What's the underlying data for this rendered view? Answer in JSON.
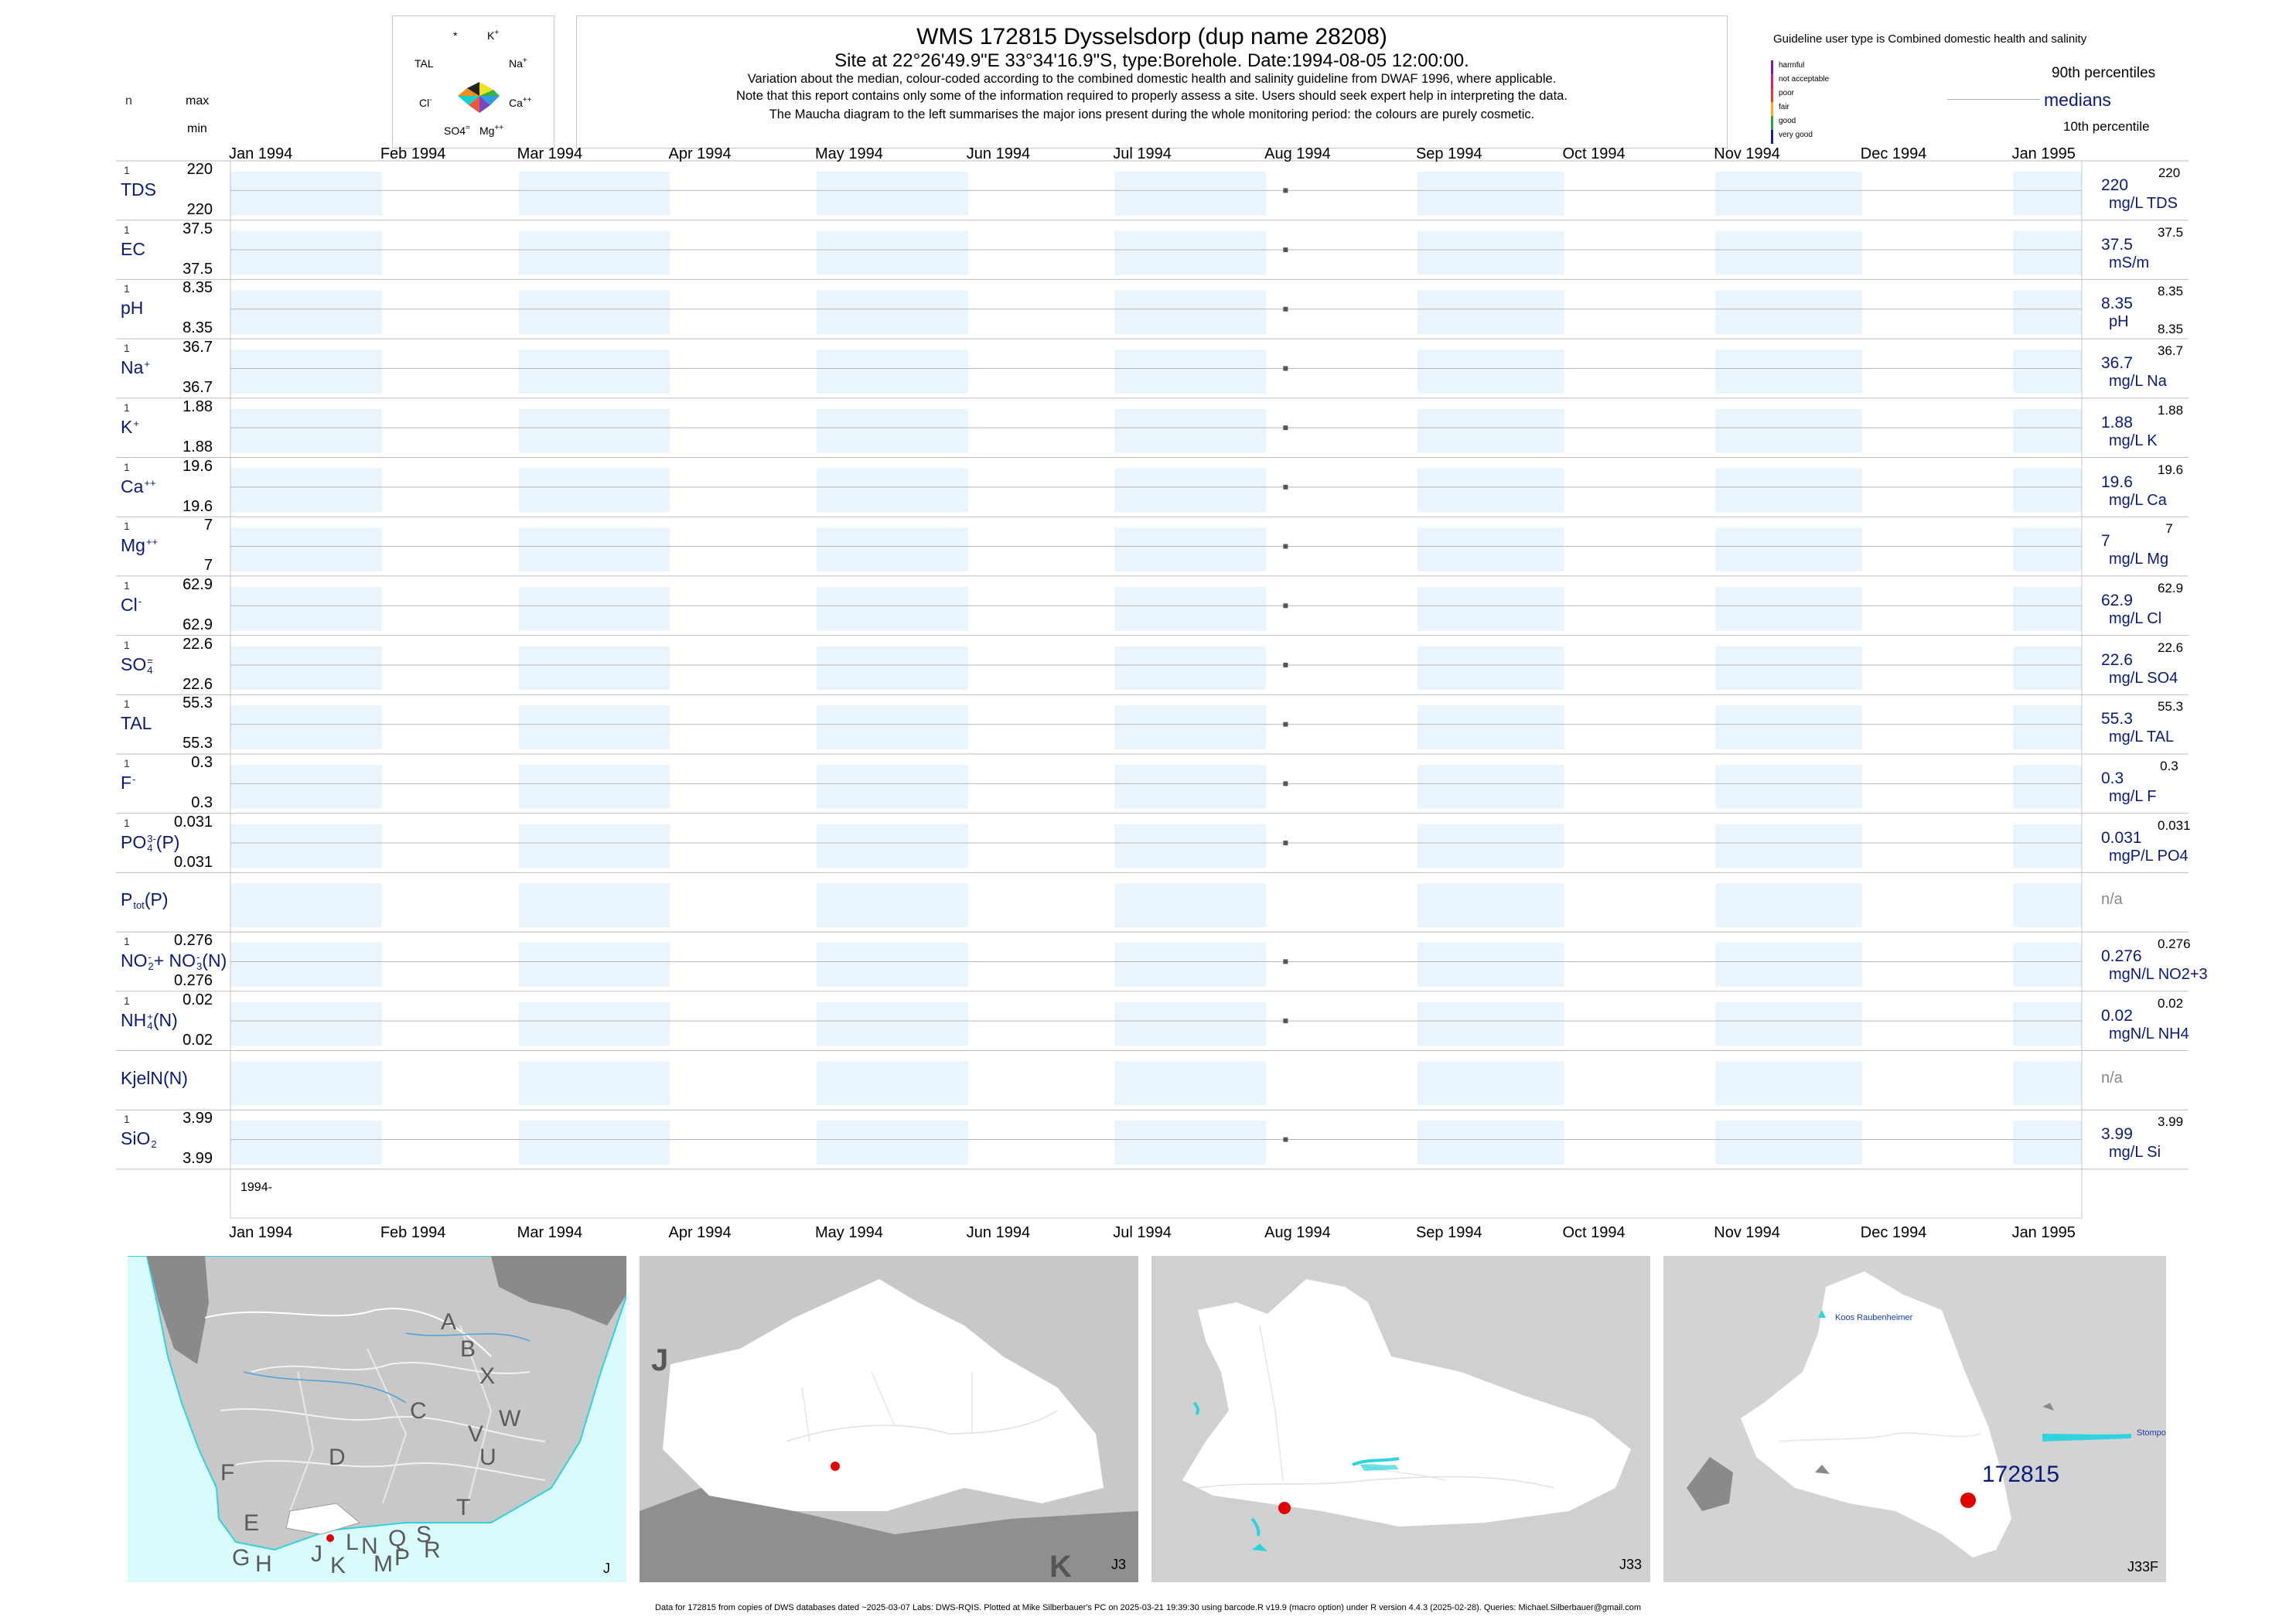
{
  "header": {
    "title": "WMS 172815  Dysselsdorp (dup name 28208)",
    "subtitle": "Site at 22°26'49.9\"E 33°34'16.9\"S, type:Borehole. Date:1994-08-05 12:00:00.",
    "note1": "Variation about the median,  colour-coded according to the combined domestic health and salinity guideline from DWAF 1996, where applicable.",
    "note2": "Note that this report contains only some of the information required to properly assess a site. Users should seek expert help in interpreting the data.",
    "note3": "The Maucha diagram to the left summarises the major ions present during the whole monitoring period: the colours are purely cosmetic."
  },
  "col_headers": {
    "n": "n",
    "max": "max",
    "min": "min"
  },
  "maucha": {
    "labels": {
      "star": "*",
      "k": "K+",
      "tal": "TAL",
      "na": "Na+",
      "cl": "Cl-",
      "ca": "Ca++",
      "so4": "SO4=",
      "mg": "Mg++"
    },
    "colors": [
      "#f2e21b",
      "#3ab24a",
      "#2c9de0",
      "#7a45c2",
      "#f2563a",
      "#14d2c8",
      "#f58a1f",
      "#222222"
    ]
  },
  "legend": {
    "title": "Guideline user type is Combined domestic health and salinity",
    "classes": [
      {
        "label": "harmful",
        "color": "#7b1fa2"
      },
      {
        "label": "not acceptable",
        "color": "#e0187a"
      },
      {
        "label": "poor",
        "color": "#e53935"
      },
      {
        "label": "fair",
        "color": "#f9a825"
      },
      {
        "label": "good",
        "color": "#2e9d3a"
      },
      {
        "label": "very good",
        "color": "#1a237e"
      }
    ],
    "p90": "90th percentiles",
    "medians": "medians",
    "p10": "10th percentile"
  },
  "chart_data": {
    "type": "scatter",
    "title": "WMS 172815  Dysselsdorp (dup name 28208)",
    "x_axis": {
      "start": "1994-01-01",
      "end": "1995-01-15",
      "ticks": [
        "Jan 1994",
        "Feb 1994",
        "Mar 1994",
        "Apr 1994",
        "May 1994",
        "Jun 1994",
        "Jul 1994",
        "Aug 1994",
        "Sep 1994",
        "Oct 1994",
        "Nov 1994",
        "Dec 1994",
        "Jan 1995"
      ]
    },
    "sample_date": "1994-08-05",
    "year_label": "1994-",
    "series": [
      {
        "name": "TDS",
        "label_main": "TDS",
        "sup": "",
        "sub": "",
        "n": "1",
        "max": "220",
        "min": "220",
        "median": "220",
        "p90": "220",
        "p10": "",
        "unit": "mg/L TDS",
        "value": 220
      },
      {
        "name": "EC",
        "label_main": "EC",
        "sup": "",
        "sub": "",
        "n": "1",
        "max": "37.5",
        "min": "37.5",
        "median": "37.5",
        "p90": "37.5",
        "p10": "",
        "unit": "mS/m",
        "value": 37.5
      },
      {
        "name": "pH",
        "label_main": "pH",
        "sup": "",
        "sub": "",
        "n": "1",
        "max": "8.35",
        "min": "8.35",
        "median": "8.35",
        "p90": "8.35",
        "p10": "8.35",
        "unit": "pH",
        "value": 8.35
      },
      {
        "name": "Na",
        "label_main": "Na",
        "sup": "+",
        "sub": "",
        "n": "1",
        "max": "36.7",
        "min": "36.7",
        "median": "36.7",
        "p90": "36.7",
        "p10": "",
        "unit": "mg/L Na",
        "value": 36.7
      },
      {
        "name": "K",
        "label_main": "K",
        "sup": "+",
        "sub": "",
        "n": "1",
        "max": "1.88",
        "min": "1.88",
        "median": "1.88",
        "p90": "1.88",
        "p10": "",
        "unit": "mg/L K",
        "value": 1.88
      },
      {
        "name": "Ca",
        "label_main": "Ca",
        "sup": "++",
        "sub": "",
        "n": "1",
        "max": "19.6",
        "min": "19.6",
        "median": "19.6",
        "p90": "19.6",
        "p10": "",
        "unit": "mg/L Ca",
        "value": 19.6
      },
      {
        "name": "Mg",
        "label_main": "Mg",
        "sup": "++",
        "sub": "",
        "n": "1",
        "max": "7",
        "min": "7",
        "median": "7",
        "p90": "7",
        "p10": "",
        "unit": "mg/L Mg",
        "value": 7
      },
      {
        "name": "Cl",
        "label_main": "Cl",
        "sup": "-",
        "sub": "",
        "n": "1",
        "max": "62.9",
        "min": "62.9",
        "median": "62.9",
        "p90": "62.9",
        "p10": "",
        "unit": "mg/L Cl",
        "value": 62.9
      },
      {
        "name": "SO4",
        "label_main": "SO",
        "sup": "=",
        "sub": "4",
        "n": "1",
        "max": "22.6",
        "min": "22.6",
        "median": "22.6",
        "p90": "22.6",
        "p10": "",
        "unit": "mg/L SO4",
        "value": 22.6
      },
      {
        "name": "TAL",
        "label_main": "TAL",
        "sup": "",
        "sub": "",
        "n": "1",
        "max": "55.3",
        "min": "55.3",
        "median": "55.3",
        "p90": "55.3",
        "p10": "",
        "unit": "mg/L TAL",
        "value": 55.3
      },
      {
        "name": "F",
        "label_main": "F",
        "sup": "-",
        "sub": "",
        "n": "1",
        "max": "0.3",
        "min": "0.3",
        "median": "0.3",
        "p90": "0.3",
        "p10": "",
        "unit": "mg/L F",
        "value": 0.3
      },
      {
        "name": "PO4",
        "label_main": "PO",
        "sup": "3-",
        "sub": "4",
        "tail": "(P)",
        "n": "1",
        "max": "0.031",
        "min": "0.031",
        "median": "0.031",
        "p90": "0.031",
        "p10": "",
        "unit": "mgP/L PO4",
        "value": 0.031
      },
      {
        "name": "Ptot",
        "label_main": "P",
        "sup": "",
        "sub": "tot",
        "tail": "(P)",
        "n": "",
        "max": "",
        "min": "",
        "median": "n/a",
        "p90": "",
        "p10": "",
        "unit": "",
        "value": null
      },
      {
        "name": "NO2+NO3",
        "label_main": "NO",
        "sup": "-",
        "sub": "2",
        "tail": "+ NO",
        "sup2": "-",
        "sub2": "3",
        "tail2": "(N)",
        "n": "1",
        "max": "0.276",
        "min": "0.276",
        "median": "0.276",
        "p90": "0.276",
        "p10": "",
        "unit": "mgN/L NO2+3",
        "value": 0.276
      },
      {
        "name": "NH4",
        "label_main": "NH",
        "sup": "+",
        "sub": "4",
        "tail": "(N)",
        "n": "1",
        "max": "0.02",
        "min": "0.02",
        "median": "0.02",
        "p90": "0.02",
        "p10": "",
        "unit": "mgN/L NH4",
        "value": 0.02
      },
      {
        "name": "KjelN",
        "label_main": "KjelN(N)",
        "sup": "",
        "sub": "",
        "n": "",
        "max": "",
        "min": "",
        "median": "n/a",
        "p90": "",
        "p10": "",
        "unit": "",
        "value": null
      },
      {
        "name": "SiO2",
        "label_main": "SiO",
        "sup": "",
        "sub": "2",
        "n": "1",
        "max": "3.99",
        "min": "3.99",
        "median": "3.99",
        "p90": "3.99",
        "p10": "",
        "unit": "mg/L Si",
        "value": 3.99
      }
    ]
  },
  "maps": [
    {
      "label": "J",
      "letters": [
        "A",
        "B",
        "X",
        "W",
        "C",
        "V",
        "U",
        "D",
        "T",
        "F",
        "E",
        "G",
        "H",
        "J",
        "K",
        "L",
        "N",
        "M",
        "Q",
        "P",
        "S",
        "R"
      ]
    },
    {
      "label": "J3",
      "big": "J",
      "corner": "K"
    },
    {
      "label": "J33"
    },
    {
      "label": "J33F",
      "site": "172815",
      "place1": "Koos Raubenheimer",
      "place2": "Stompo"
    }
  ],
  "footer": "Data for 172815 from copies of DWS databases dated ~2025-03-07 Labs: DWS-RQIS. Plotted at Mike Silberbauer's PC on 2025-03-21 19:39:30 using barcode.R v19.9 (macro option) under R version 4.4.3 (2025-02-28). Queries: Michael.Silberbauer@gmail.com"
}
